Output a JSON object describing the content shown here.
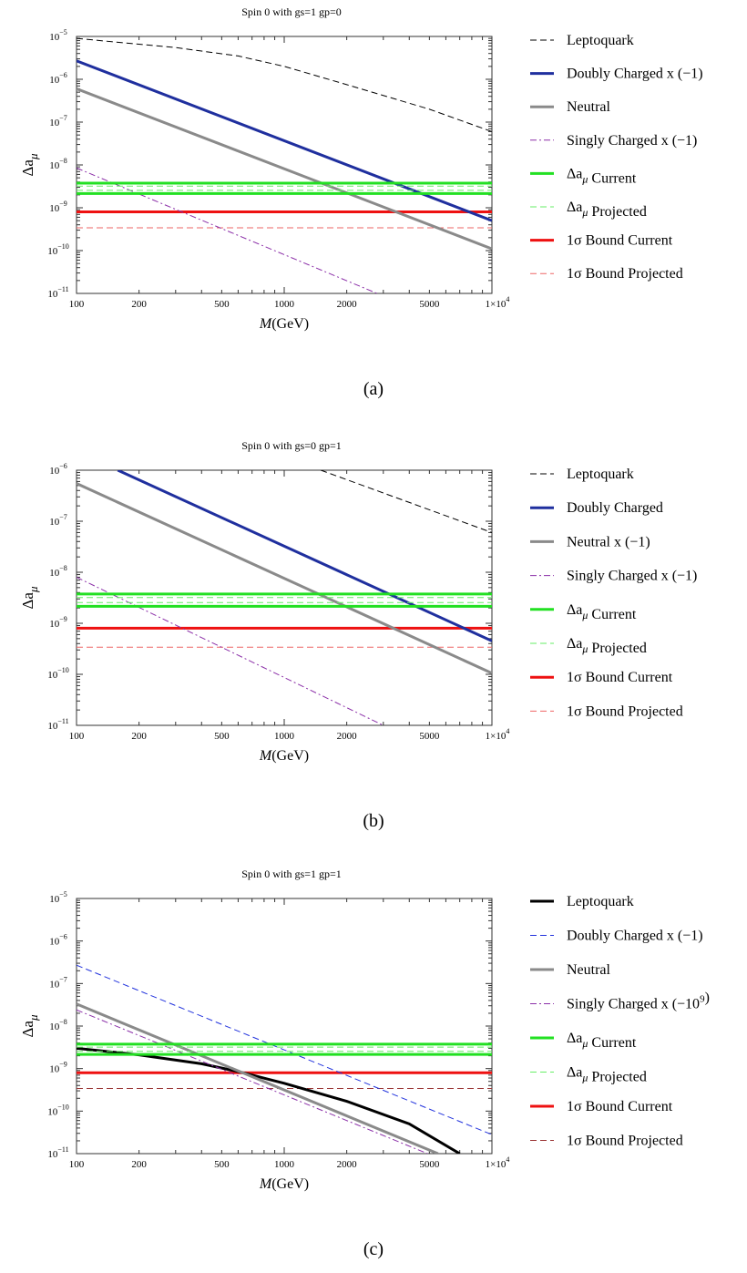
{
  "chart_data": [
    {
      "type": "line",
      "caption": "(a)",
      "title": "Spin 0 with gs=1 gp=0",
      "xlabel": "M(GeV)",
      "ylabel": "Δa_μ",
      "x_scale": "log",
      "y_scale": "log",
      "xlim": [
        100,
        10000
      ],
      "ylim": [
        1e-11,
        1e-05
      ],
      "x_ticks": [
        100,
        200,
        500,
        1000,
        2000,
        5000,
        10000
      ],
      "x_tick_labels": [
        "100",
        "200",
        "500",
        "1000",
        "2000",
        "5000",
        "1×10^4"
      ],
      "y_tick_exponents": [
        -11,
        -10,
        -9,
        -8,
        -7,
        -6,
        -5
      ],
      "legend_position": "right",
      "series": [
        {
          "name": "Leptoquark",
          "color": "#000000",
          "style": "dashed",
          "width": 1,
          "x": [
            100,
            300,
            600,
            1000,
            2000,
            5000,
            10000
          ],
          "y": [
            9e-06,
            5.5e-06,
            3.5e-06,
            2e-06,
            7.5e-07,
            2e-07,
            6e-08
          ]
        },
        {
          "name": "Doubly Charged x (−1)",
          "color": "#1f2f9e",
          "style": "solid",
          "width": 3,
          "x": [
            100,
            10000
          ],
          "y": [
            2.7e-06,
            5e-10
          ]
        },
        {
          "name": "Neutral",
          "color": "#8a8a8a",
          "style": "solid",
          "width": 3,
          "x": [
            100,
            10000
          ],
          "y": [
            6e-07,
            1.1e-10
          ]
        },
        {
          "name": "Singly Charged x (−1)",
          "color": "#8b2fa8",
          "style": "dashdot",
          "width": 1,
          "x": [
            100,
            2800
          ],
          "y": [
            8.5e-09,
            1e-11
          ]
        },
        {
          "name": "Δa_μ Current",
          "color": "#22e022",
          "style": "band",
          "width": 3,
          "x": [
            100,
            10000
          ],
          "y_low": 2.15e-09,
          "y_high": 3.75e-09
        },
        {
          "name": "Δa_μ Projected",
          "color": "#66ee66",
          "style": "dashed-band",
          "width": 1,
          "x": [
            100,
            10000
          ],
          "y_low": 2.55e-09,
          "y_high": 3.2e-09
        },
        {
          "name": "1σ Bound Current",
          "color": "#ee1111",
          "style": "solid",
          "width": 3,
          "x": [
            100,
            10000
          ],
          "y": [
            8e-10,
            8e-10
          ]
        },
        {
          "name": "1σ Bound Projected",
          "color": "#ee6666",
          "style": "dashed",
          "width": 1,
          "x": [
            100,
            10000
          ],
          "y": [
            3.4e-10,
            3.4e-10
          ]
        }
      ]
    },
    {
      "type": "line",
      "caption": "(b)",
      "title": "Spin 0 with gs=0 gp=1",
      "xlabel": "M(GeV)",
      "ylabel": "Δa_μ",
      "x_scale": "log",
      "y_scale": "log",
      "xlim": [
        100,
        10000
      ],
      "ylim": [
        1e-11,
        1e-06
      ],
      "x_ticks": [
        100,
        200,
        500,
        1000,
        2000,
        5000,
        10000
      ],
      "x_tick_labels": [
        "100",
        "200",
        "500",
        "1000",
        "2000",
        "5000",
        "1×10^4"
      ],
      "y_tick_exponents": [
        -11,
        -10,
        -9,
        -8,
        -7,
        -6
      ],
      "legend_position": "right",
      "series": [
        {
          "name": "Leptoquark",
          "color": "#000000",
          "style": "dashed",
          "width": 1,
          "x": [
            1500,
            10000
          ],
          "y": [
            1e-06,
            6e-08
          ]
        },
        {
          "name": "Doubly Charged",
          "color": "#1f2f9e",
          "style": "solid",
          "width": 3,
          "x": [
            158,
            10000
          ],
          "y": [
            1e-06,
            4.5e-10
          ]
        },
        {
          "name": "Neutral x (−1)",
          "color": "#8a8a8a",
          "style": "solid",
          "width": 3,
          "x": [
            100,
            10000
          ],
          "y": [
            5.5e-07,
            1.05e-10
          ]
        },
        {
          "name": "Singly Charged x (−1)",
          "color": "#8b2fa8",
          "style": "dashdot",
          "width": 1,
          "x": [
            100,
            3000
          ],
          "y": [
            8e-09,
            1e-11
          ]
        },
        {
          "name": "Δa_μ Current",
          "color": "#22e022",
          "style": "band",
          "width": 3,
          "x": [
            100,
            10000
          ],
          "y_low": 2.15e-09,
          "y_high": 3.75e-09
        },
        {
          "name": "Δa_μ Projected",
          "color": "#66ee66",
          "style": "dashed-band",
          "width": 1,
          "x": [
            100,
            10000
          ],
          "y_low": 2.55e-09,
          "y_high": 3.2e-09
        },
        {
          "name": "1σ Bound Current",
          "color": "#ee1111",
          "style": "solid",
          "width": 3,
          "x": [
            100,
            10000
          ],
          "y": [
            8e-10,
            8e-10
          ]
        },
        {
          "name": "1σ Bound Projected",
          "color": "#ee6666",
          "style": "dashed",
          "width": 1,
          "x": [
            100,
            10000
          ],
          "y": [
            3.4e-10,
            3.4e-10
          ]
        }
      ]
    },
    {
      "type": "line",
      "caption": "(c)",
      "title": "Spin 0 with gs=1 gp=1",
      "xlabel": "M(GeV)",
      "ylabel": "Δa_μ",
      "x_scale": "log",
      "y_scale": "log",
      "xlim": [
        100,
        10000
      ],
      "ylim": [
        1e-11,
        1e-05
      ],
      "x_ticks": [
        100,
        200,
        500,
        1000,
        2000,
        5000,
        10000
      ],
      "x_tick_labels": [
        "100",
        "200",
        "500",
        "1000",
        "2000",
        "5000",
        "1×10^4"
      ],
      "y_tick_exponents": [
        -11,
        -10,
        -9,
        -8,
        -7,
        -6,
        -5
      ],
      "legend_position": "right",
      "series": [
        {
          "name": "Leptoquark",
          "color": "#000000",
          "style": "solid",
          "width": 3,
          "x": [
            100,
            200,
            400,
            600,
            1000,
            2000,
            4000,
            7000
          ],
          "y": [
            3e-09,
            2.1e-09,
            1.3e-09,
            8.5e-10,
            4.5e-10,
            1.7e-10,
            5e-11,
            1e-11
          ]
        },
        {
          "name": "Doubly Charged x (−1)",
          "color": "#2233dd",
          "style": "dashed",
          "width": 1,
          "x": [
            100,
            10000
          ],
          "y": [
            2.7e-07,
            2.8e-11
          ]
        },
        {
          "name": "Neutral",
          "color": "#8a8a8a",
          "style": "solid",
          "width": 3,
          "x": [
            100,
            5500
          ],
          "y": [
            3.3e-08,
            1e-11
          ]
        },
        {
          "name": "Singly Charged x (−10^9)",
          "color": "#8b2fa8",
          "style": "dashdot",
          "width": 1,
          "x": [
            100,
            4900
          ],
          "y": [
            2.4e-08,
            1e-11
          ]
        },
        {
          "name": "Δa_μ Current",
          "color": "#22e022",
          "style": "band",
          "width": 3,
          "x": [
            100,
            10000
          ],
          "y_low": 2.15e-09,
          "y_high": 3.75e-09
        },
        {
          "name": "Δa_μ Projected",
          "color": "#66ee66",
          "style": "dashed-band",
          "width": 1,
          "x": [
            100,
            10000
          ],
          "y_low": 2.55e-09,
          "y_high": 3.2e-09
        },
        {
          "name": "1σ Bound Current",
          "color": "#ee1111",
          "style": "solid",
          "width": 3,
          "x": [
            100,
            10000
          ],
          "y": [
            8e-10,
            8e-10
          ]
        },
        {
          "name": "1σ Bound Projected",
          "color": "#993333",
          "style": "dashed",
          "width": 1,
          "x": [
            100,
            10000
          ],
          "y": [
            3.4e-10,
            3.4e-10
          ]
        }
      ]
    }
  ]
}
